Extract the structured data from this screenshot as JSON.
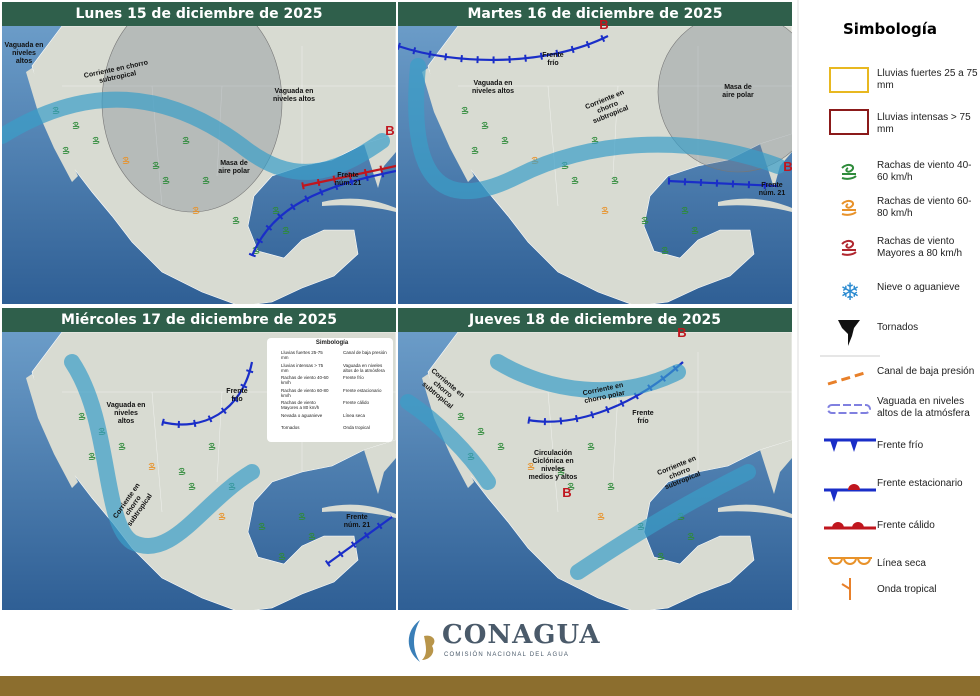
{
  "panels": [
    {
      "title": "Lunes 15 de diciembre de 2025",
      "labels": [
        "Vaguada en niveles altos",
        "Corriente en chorro subtropical",
        "Vaguada en niveles altos",
        "Masa de aire polar",
        "Frente núm. 21",
        "B"
      ]
    },
    {
      "title": "Martes 16 de diciembre de 2025",
      "labels": [
        "B",
        "Frente frío",
        "Vaguada en niveles altos",
        "Corriente en chorro subtropical",
        "Masa de aire polar",
        "B",
        "Frente núm. 21"
      ]
    },
    {
      "title": "Miércoles 17 de diciembre de 2025",
      "labels": [
        "Frente frío",
        "Vaguada en niveles altos",
        "Corriente en chorro subtropical",
        "Frente núm. 21"
      ],
      "inset_legend": {
        "title": "Simbología",
        "items": [
          "Lluvias fuertes 25-75 mm",
          "Lluvias intensas > 75 mm",
          "Rachas de viento 40-60 km/h",
          "Rachas de viento 60-80 km/h",
          "Rachas de viento Mayores a 80 km/h",
          "Nevada o aguanieve",
          "Tornados",
          "Canal de baja presión",
          "Vaguada en niveles altos de la atmósfera",
          "Frente frío",
          "Frente estacionario",
          "Frente cálido",
          "Línea seca",
          "Onda tropical"
        ]
      }
    },
    {
      "title": "Jueves 18 de diciembre de 2025",
      "labels": [
        "B",
        "Corriente en chorro subtropical",
        "Corriente en chorro polar",
        "Frente frío",
        "Circulación Ciclónica en niveles medios y altos",
        "B",
        "Corriente en chorro subtropical"
      ]
    }
  ],
  "legend": {
    "title": "Simbología",
    "items": [
      "Lluvias fuertes 25 a 75 mm",
      "Lluvias intensas > 75 mm",
      "Rachas de viento 40-60 km/h",
      "Rachas de viento 60-80 km/h",
      "Rachas de viento Mayores a 80 km/h",
      "Nieve o aguanieve",
      "Tornados",
      "Canal de baja presión",
      "Vaguada en niveles altos de la atmósfera",
      "Frente frío",
      "Frente estacionario",
      "Frente cálido",
      "Línea seca",
      "Onda tropical"
    ]
  },
  "footer": {
    "brand": "CONAGUA",
    "subtitle": "COMISIÓN NACIONAL DEL AGUA"
  }
}
